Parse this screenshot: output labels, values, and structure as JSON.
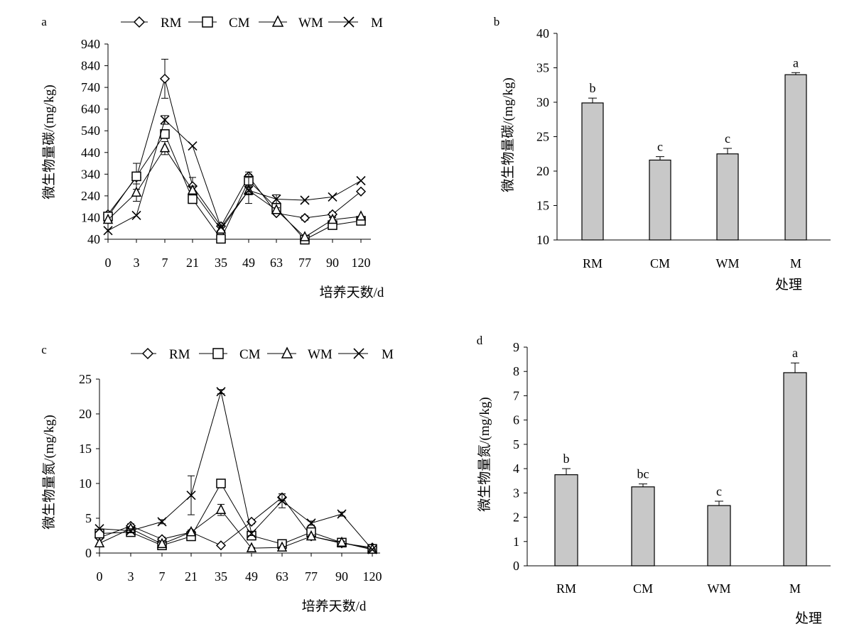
{
  "colors": {
    "ink": "#000000",
    "background": "#ffffff",
    "bar_fill": "#c8c8c8"
  },
  "chart_data": [
    {
      "panel": "a",
      "type": "line",
      "ylabel": "微生物量碳/(mg/kg)",
      "xlabel": "培养天数/d",
      "categories": [
        "0",
        "3",
        "7",
        "21",
        "35",
        "49",
        "63",
        "77",
        "90",
        "120"
      ],
      "ylim": [
        40,
        940
      ],
      "yticks": [
        40,
        140,
        240,
        340,
        440,
        540,
        640,
        740,
        840,
        940
      ],
      "legend_position": "top",
      "series": [
        {
          "name": "RM",
          "marker": "diamond",
          "values": [
            155,
            325,
            780,
            285,
            100,
            330,
            160,
            138,
            155,
            260
          ],
          "errors": [
            0,
            10,
            90,
            40,
            0,
            20,
            0,
            10,
            10,
            0
          ]
        },
        {
          "name": "CM",
          "marker": "square",
          "values": [
            145,
            330,
            525,
            225,
            42,
            310,
            185,
            38,
            105,
            125
          ],
          "errors": [
            0,
            60,
            20,
            20,
            0,
            30,
            20,
            0,
            10,
            10
          ]
        },
        {
          "name": "WM",
          "marker": "triangle",
          "values": [
            130,
            255,
            460,
            265,
            85,
            265,
            175,
            50,
            130,
            145
          ],
          "errors": [
            0,
            40,
            30,
            20,
            0,
            20,
            10,
            0,
            10,
            0
          ]
        },
        {
          "name": "M",
          "marker": "x",
          "values": [
            80,
            150,
            590,
            470,
            95,
            265,
            225,
            220,
            235,
            310
          ],
          "errors": [
            0,
            0,
            20,
            0,
            0,
            60,
            20,
            0,
            0,
            0
          ]
        }
      ]
    },
    {
      "panel": "b",
      "type": "bar",
      "ylabel": "微生物量碳/(mg/kg)",
      "xlabel": "处理",
      "categories": [
        "RM",
        "CM",
        "WM",
        "M"
      ],
      "values": [
        29.9,
        21.6,
        22.5,
        34.0
      ],
      "errors": [
        0.7,
        0.5,
        0.8,
        0.3
      ],
      "significance": [
        "b",
        "c",
        "c",
        "a"
      ],
      "ylim": [
        10,
        40
      ],
      "yticks": [
        10,
        15,
        20,
        25,
        30,
        35,
        40
      ]
    },
    {
      "panel": "c",
      "type": "line",
      "ylabel": "微生物量氮/(mg/kg)",
      "xlabel": "培养天数/d",
      "categories": [
        "0",
        "3",
        "7",
        "21",
        "35",
        "49",
        "63",
        "77",
        "90",
        "120"
      ],
      "ylim": [
        0,
        25
      ],
      "yticks": [
        0,
        5,
        10,
        15,
        20,
        25
      ],
      "legend_position": "top",
      "series": [
        {
          "name": "RM",
          "marker": "diamond",
          "values": [
            2.2,
            3.9,
            2.0,
            3.0,
            1.1,
            4.5,
            8.0,
            2.4,
            1.4,
            0.8
          ],
          "errors": [
            0,
            0.3,
            0.3,
            0.3,
            0,
            0.3,
            0.5,
            0.2,
            0.2,
            0.1
          ]
        },
        {
          "name": "CM",
          "marker": "square",
          "values": [
            2.8,
            3.0,
            1.1,
            2.4,
            10.0,
            2.5,
            1.3,
            3.0,
            1.5,
            0.6
          ],
          "errors": [
            0,
            0.3,
            0.2,
            0.3,
            0.4,
            0.3,
            0.2,
            0.3,
            0.2,
            0.1
          ]
        },
        {
          "name": "WM",
          "marker": "triangle",
          "values": [
            1.4,
            3.5,
            1.3,
            3.0,
            6.2,
            0.7,
            0.8,
            2.4,
            1.5,
            0.5
          ],
          "errors": [
            0,
            0.3,
            0.2,
            0.3,
            0.8,
            0.1,
            0.1,
            0.2,
            0.2,
            0.1
          ]
        },
        {
          "name": "M",
          "marker": "x",
          "values": [
            3.5,
            3.2,
            4.5,
            8.3,
            23.2,
            2.8,
            7.5,
            4.3,
            5.6,
            0.5
          ],
          "errors": [
            0,
            0.3,
            0.3,
            2.8,
            0.3,
            0.3,
            1.0,
            0.3,
            0.3,
            0.1
          ]
        }
      ]
    },
    {
      "panel": "d",
      "type": "bar",
      "ylabel": "微生物量氮/(mg/kg)",
      "xlabel": "处理",
      "categories": [
        "RM",
        "CM",
        "WM",
        "M"
      ],
      "values": [
        3.75,
        3.25,
        2.48,
        7.95
      ],
      "errors": [
        0.25,
        0.12,
        0.18,
        0.4
      ],
      "significance": [
        "b",
        "bc",
        "c",
        "a"
      ],
      "ylim": [
        0,
        9
      ],
      "yticks": [
        0,
        1,
        2,
        3,
        4,
        5,
        6,
        7,
        8,
        9
      ]
    }
  ]
}
